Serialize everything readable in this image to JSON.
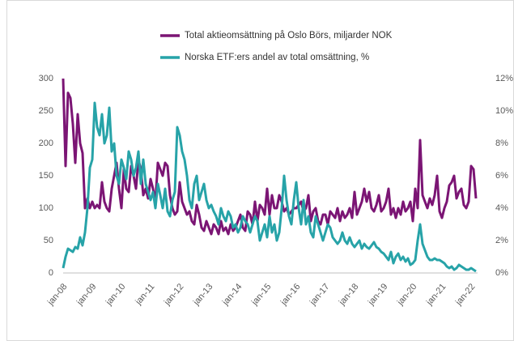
{
  "chart_data": {
    "type": "line",
    "categories": [
      "jan-08",
      null,
      null,
      null,
      null,
      null,
      null,
      null,
      null,
      null,
      null,
      null,
      "jan-09",
      null,
      null,
      null,
      null,
      null,
      null,
      null,
      null,
      null,
      null,
      null,
      "jan-10",
      null,
      null,
      null,
      null,
      null,
      null,
      null,
      null,
      null,
      null,
      null,
      "jan-11",
      null,
      null,
      null,
      null,
      null,
      null,
      null,
      null,
      null,
      null,
      null,
      "jan-12",
      null,
      null,
      null,
      null,
      null,
      null,
      null,
      null,
      null,
      null,
      null,
      "jan-13",
      null,
      null,
      null,
      null,
      null,
      null,
      null,
      null,
      null,
      null,
      null,
      "jan-14",
      null,
      null,
      null,
      null,
      null,
      null,
      null,
      null,
      null,
      null,
      null,
      "jan-15",
      null,
      null,
      null,
      null,
      null,
      null,
      null,
      null,
      null,
      null,
      null,
      "jan-16",
      null,
      null,
      null,
      null,
      null,
      null,
      null,
      null,
      null,
      null,
      null,
      "jan-17",
      null,
      null,
      null,
      null,
      null,
      null,
      null,
      null,
      null,
      null,
      null,
      "jan-18",
      null,
      null,
      null,
      null,
      null,
      null,
      null,
      null,
      null,
      null,
      null,
      "jan-19",
      null,
      null,
      null,
      null,
      null,
      null,
      null,
      null,
      null,
      null,
      null,
      "jan-20",
      null,
      null,
      null,
      null,
      null,
      null,
      null,
      null,
      null,
      null,
      null,
      "jan-21",
      null,
      null,
      null,
      null,
      null,
      null,
      null,
      null,
      null,
      null,
      null,
      "jan-22",
      null,
      null
    ],
    "series": [
      {
        "name": "Total aktieomsättning på Oslo Börs, miljarder NOK",
        "color": "#7b1574",
        "values": [
          300,
          165,
          278,
          270,
          230,
          170,
          245,
          200,
          185,
          100,
          115,
          100,
          110,
          100,
          105,
          100,
          140,
          110,
          100,
          95,
          130,
          150,
          170,
          130,
          100,
          160,
          130,
          125,
          165,
          150,
          130,
          175,
          160,
          120,
          130,
          115,
          145,
          130,
          110,
          170,
          160,
          150,
          170,
          165,
          120,
          100,
          90,
          95,
          140,
          110,
          100,
          90,
          95,
          80,
          75,
          105,
          90,
          70,
          65,
          80,
          70,
          60,
          75,
          70,
          60,
          80,
          65,
          70,
          60,
          75,
          65,
          70,
          80,
          90,
          70,
          65,
          95,
          90,
          75,
          110,
          80,
          105,
          100,
          90,
          130,
          90,
          120,
          100,
          100,
          120,
          110,
          95,
          100,
          90,
          95,
          100,
          100,
          105,
          110,
          95,
          100,
          120,
          80,
          95,
          100,
          80,
          75,
          90,
          90,
          75,
          95,
          90,
          85,
          100,
          80,
          95,
          85,
          90,
          100,
          85,
          125,
          90,
          100,
          110,
          130,
          110,
          125,
          100,
          95,
          105,
          120,
          95,
          100,
          110,
          130,
          90,
          100,
          85,
          100,
          90,
          110,
          95,
          100,
          110,
          80,
          130,
          100,
          205,
          120,
          110,
          100,
          115,
          105,
          120,
          150,
          95,
          85,
          100,
          110,
          135,
          140,
          150,
          115,
          125,
          130,
          105,
          100,
          110,
          165,
          160,
          115
        ]
      },
      {
        "name": "Norska ETF:ers andel av total omsättning, %",
        "color": "#27a3a8",
        "axis": "y2",
        "values": [
          0.3,
          1.0,
          1.5,
          1.4,
          1.3,
          1.6,
          1.5,
          2.2,
          1.7,
          2.5,
          4.0,
          6.5,
          7.0,
          10.5,
          9.0,
          8.5,
          9.8,
          8.0,
          8.5,
          10.2,
          7.5,
          8.0,
          6.0,
          5.5,
          7.0,
          6.5,
          5.8,
          7.5,
          7.0,
          6.0,
          6.5,
          7.5,
          5.5,
          7.0,
          5.5,
          5.0,
          4.5,
          5.0,
          4.0,
          5.5,
          4.8,
          4.0,
          5.2,
          3.8,
          3.5,
          4.5,
          5.0,
          9.0,
          8.5,
          7.5,
          7.0,
          6.0,
          4.5,
          4.0,
          5.5,
          6.0,
          4.5,
          5.0,
          5.5,
          4.5,
          4.0,
          4.2,
          3.8,
          3.5,
          3.0,
          4.0,
          3.5,
          3.2,
          3.8,
          3.5,
          2.8,
          3.0,
          2.5,
          2.8,
          3.5,
          3.2,
          3.0,
          2.5,
          3.0,
          3.5,
          3.2,
          2.0,
          2.5,
          3.0,
          2.2,
          3.5,
          2.5,
          3.0,
          2.0,
          2.5,
          4.0,
          6.0,
          4.5,
          3.5,
          3.0,
          4.5,
          5.6,
          4.0,
          3.0,
          4.5,
          3.0,
          3.5,
          2.5,
          2.2,
          3.5,
          3.0,
          2.5,
          2.0,
          2.5,
          3.0,
          2.8,
          2.2,
          2.0,
          1.8,
          2.0,
          2.5,
          2.0,
          1.8,
          2.2,
          1.8,
          1.6,
          1.8,
          2.0,
          1.5,
          1.8,
          1.6,
          1.5,
          1.7,
          1.9,
          1.6,
          1.5,
          1.3,
          1.2,
          1.0,
          0.8,
          1.3,
          0.6,
          1.0,
          1.2,
          0.8,
          1.0,
          0.7,
          0.9,
          0.5,
          0.6,
          0.8,
          2.0,
          3.0,
          1.8,
          1.4,
          1.0,
          0.8,
          0.8,
          0.9,
          0.8,
          0.8,
          0.7,
          0.6,
          0.4,
          0.3,
          0.4,
          0.2,
          0.3,
          0.5,
          0.4,
          0.3,
          0.2,
          0.2,
          0.3,
          0.2,
          0.1
        ]
      }
    ],
    "ylim": [
      0,
      300
    ],
    "yticks": [
      0,
      50,
      100,
      150,
      200,
      250,
      300
    ],
    "y2lim": [
      0,
      12
    ],
    "y2ticks": [
      {
        "value": 0,
        "label": "0%"
      },
      {
        "value": 2,
        "label": "2%"
      },
      {
        "value": 4,
        "label": "4%"
      },
      {
        "value": 6,
        "label": "6%"
      },
      {
        "value": 8,
        "label": "8%"
      },
      {
        "value": 10,
        "label": "10%"
      },
      {
        "value": 12,
        "label": "12%"
      }
    ],
    "grid": false,
    "legend": "top"
  }
}
